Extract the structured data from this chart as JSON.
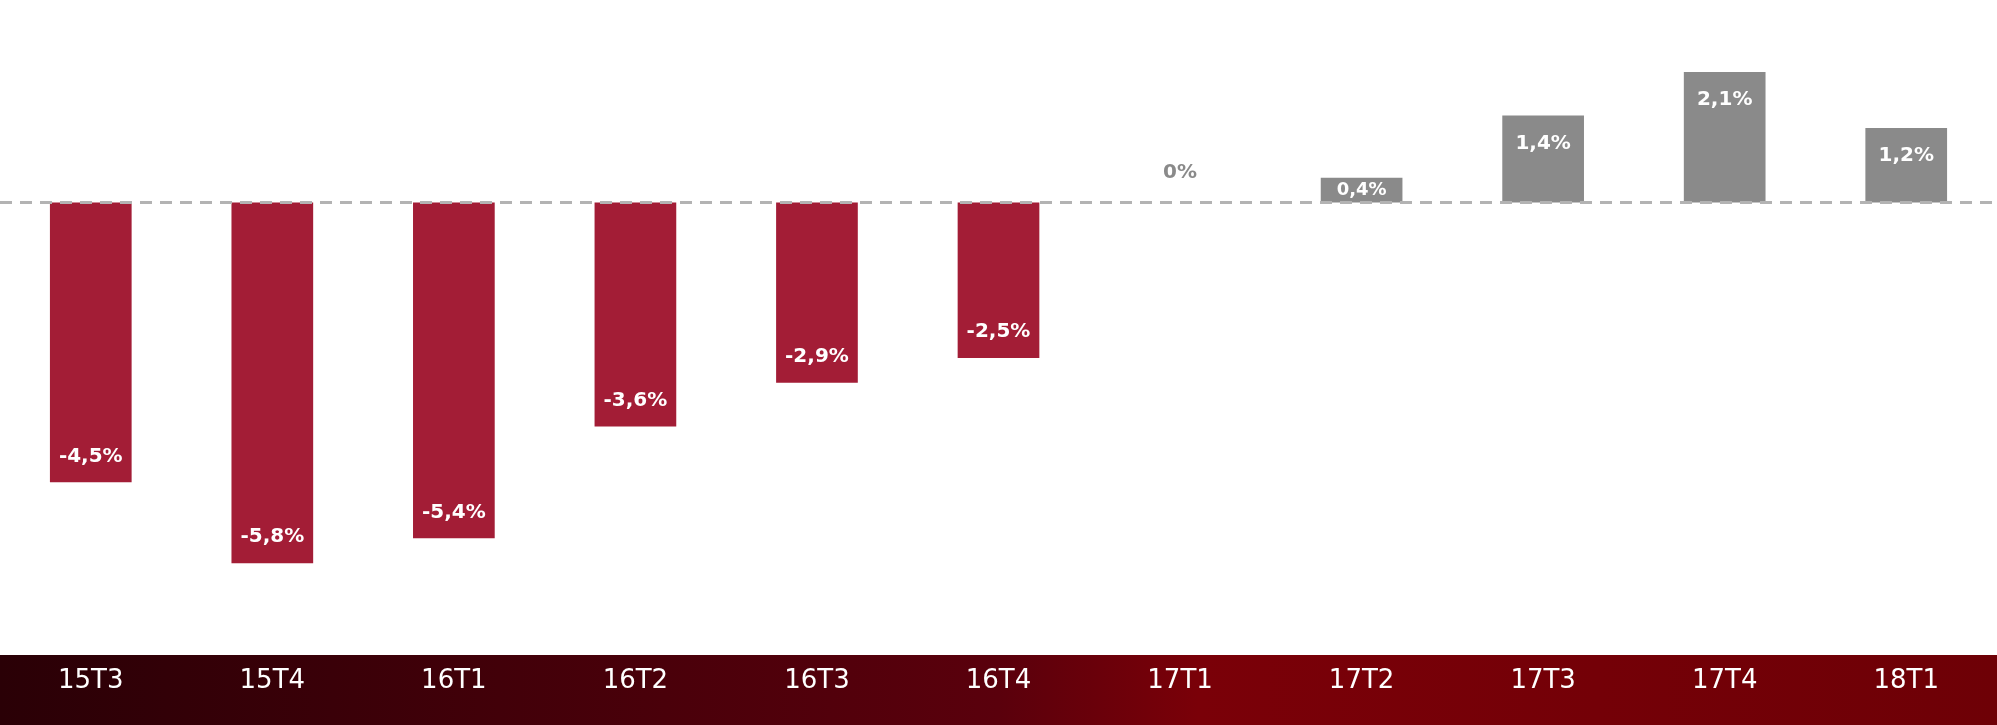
{
  "chart_data": {
    "type": "bar",
    "categories": [
      "15T3",
      "15T4",
      "16T1",
      "16T2",
      "16T3",
      "16T4",
      "17T1",
      "17T2",
      "17T3",
      "17T4",
      "18T1"
    ],
    "values": [
      -4.5,
      -5.8,
      -5.4,
      -3.6,
      -2.9,
      -2.5,
      0,
      0.4,
      1.4,
      2.1,
      1.2
    ],
    "colors": [
      "#a31d36",
      "#a31d36",
      "#a31d36",
      "#a31d36",
      "#a31d36",
      "#a31d36",
      "#8a8a8a",
      "#8a8a8a",
      "#8a8a8a",
      "#8a8a8a",
      "#8a8a8a"
    ],
    "value_labels": [
      "-4,5%",
      "-5,8%",
      "-5,4%",
      "-3,6%",
      "-2,9%",
      "-2,5%",
      "0%",
      "0,4%",
      "1,4%",
      "2,1%",
      "1,2%"
    ],
    "ref_lines": [
      {
        "axis": "y",
        "value": 0,
        "color": "#b3b3b3",
        "line_style": "dashed"
      }
    ],
    "tick_labels": "x",
    "grid": false,
    "legend": false
  }
}
